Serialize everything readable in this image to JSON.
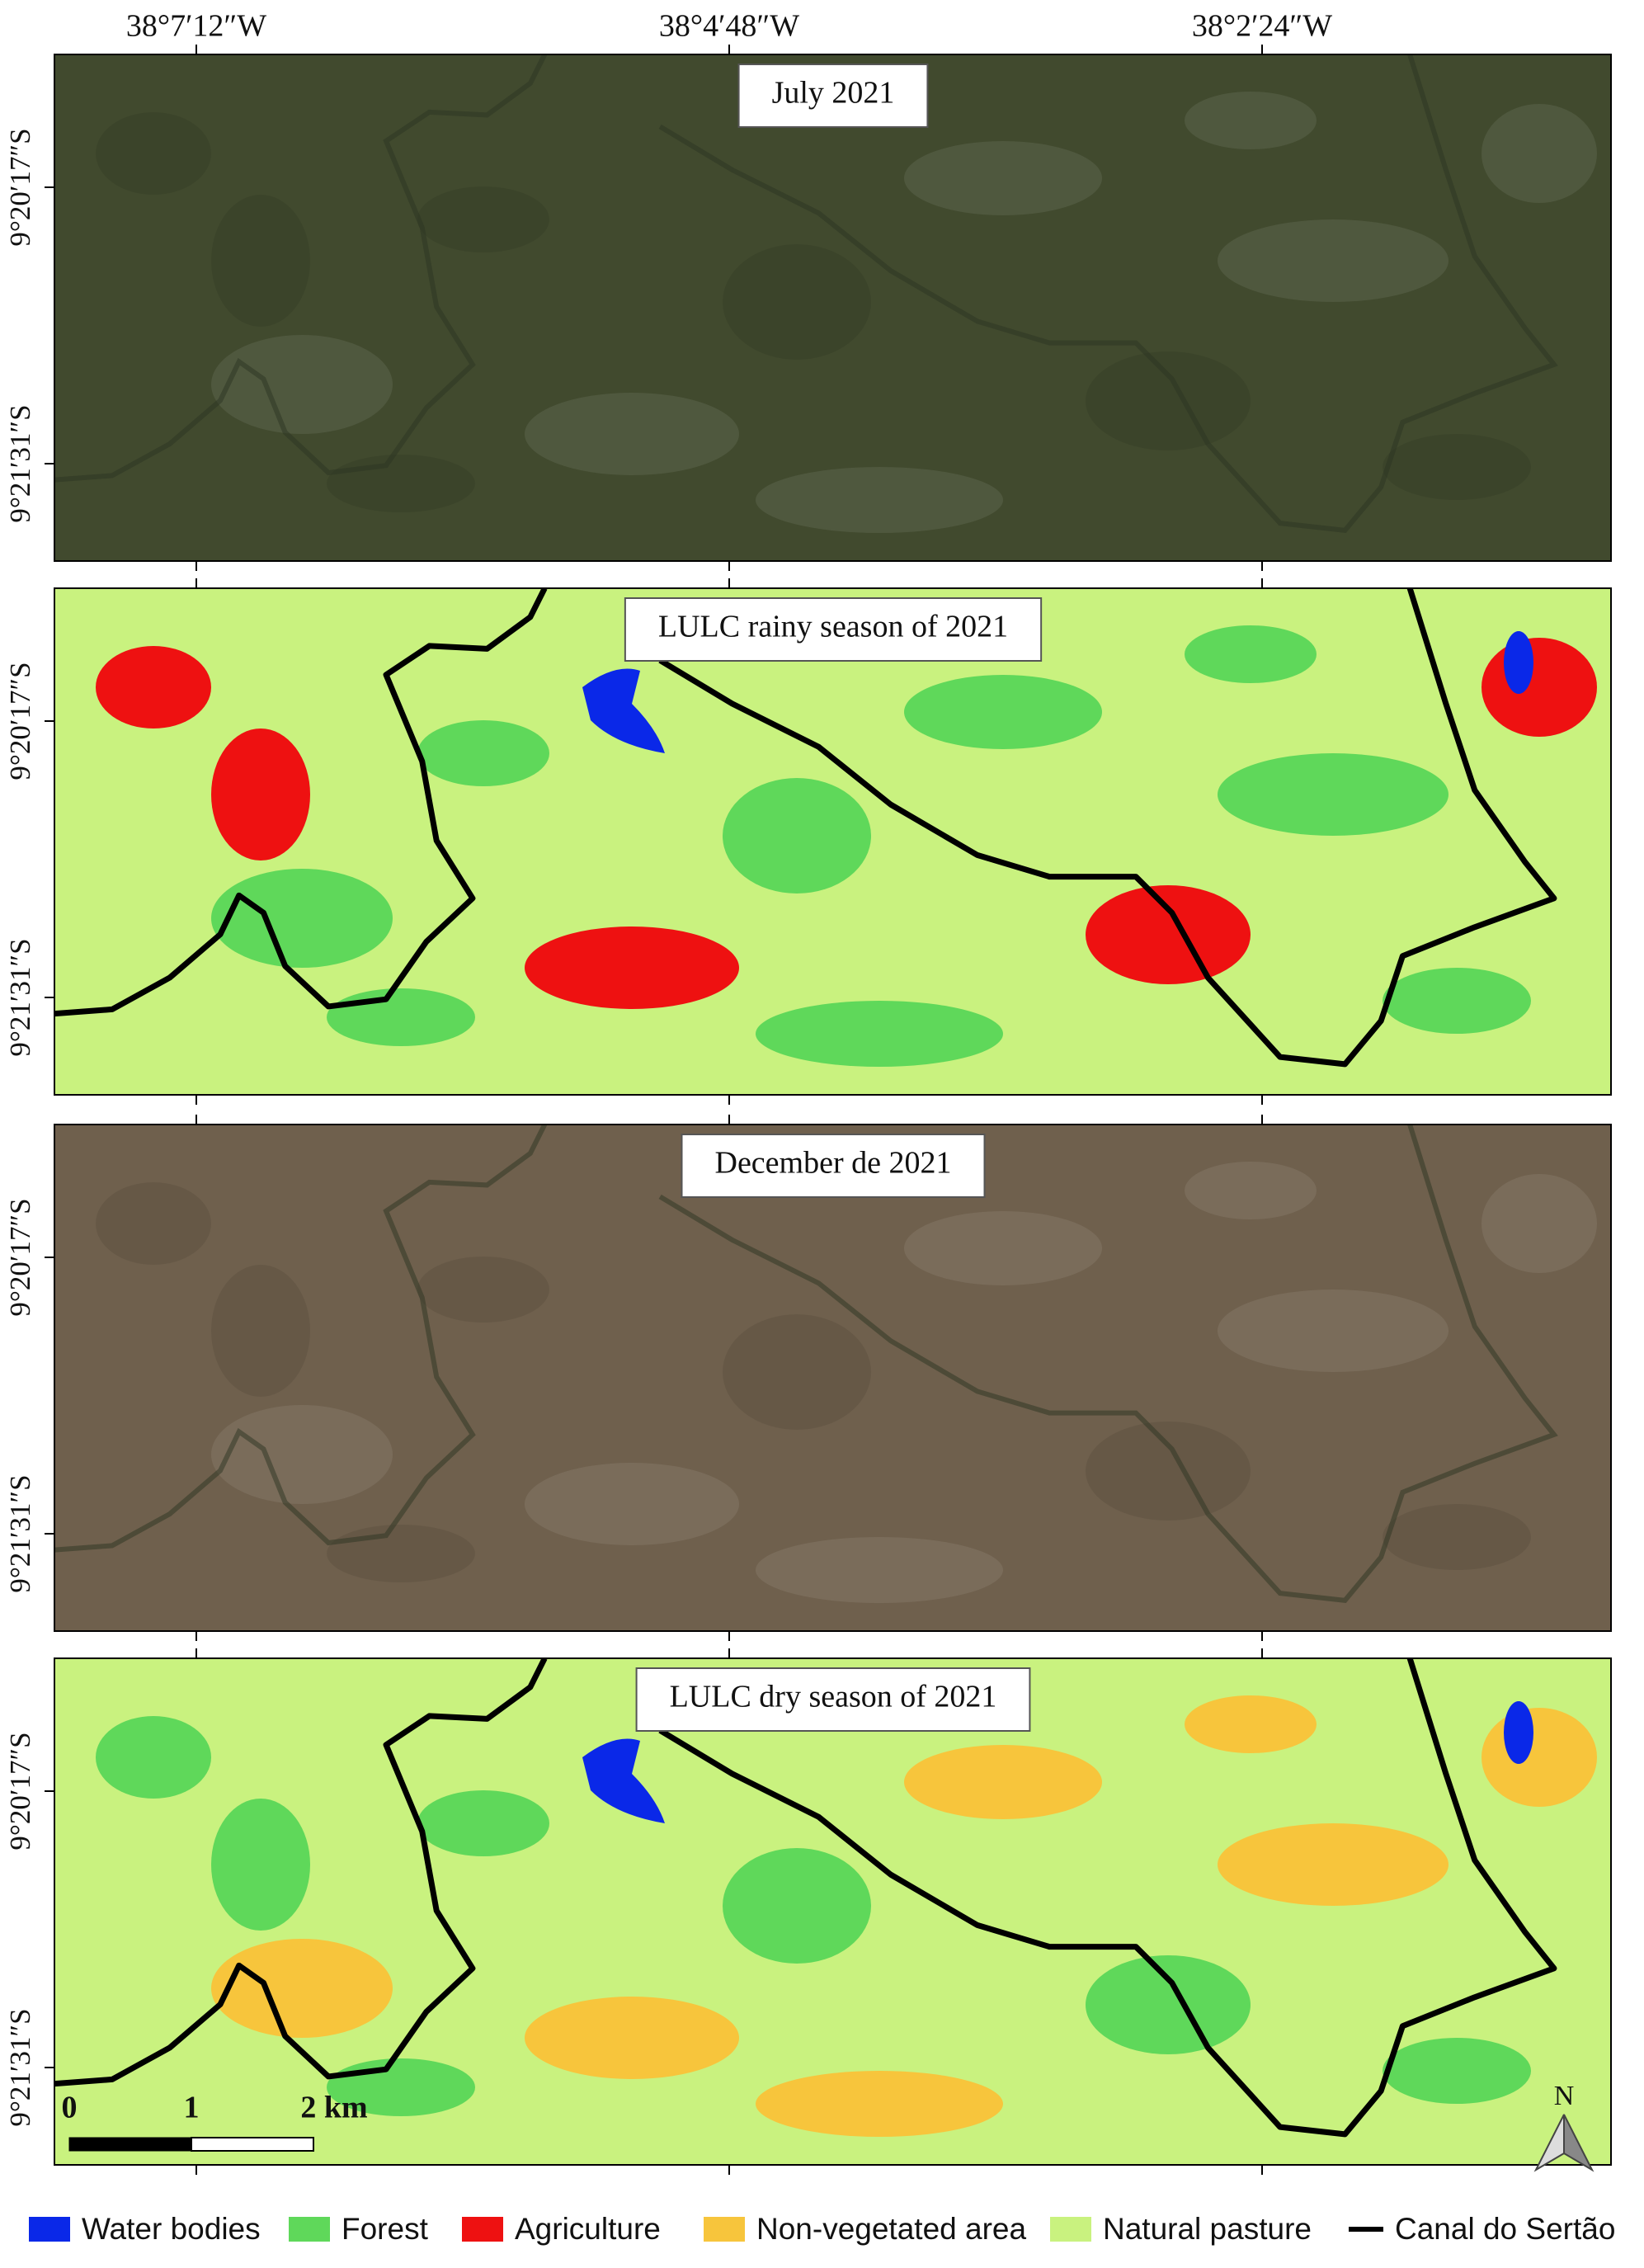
{
  "x_tick_labels": [
    "38°7′12″W",
    "38°4′48″W",
    "38°2′24″W"
  ],
  "y_tick_labels": [
    "9°20′17″S",
    "9°21′31″S"
  ],
  "panels": [
    {
      "title": "July 2021",
      "kind": "image",
      "color": "#414a2e"
    },
    {
      "title": "LULC rainy season of 2021",
      "kind": "lulc",
      "color": "#c9f27f"
    },
    {
      "title": "December de 2021",
      "kind": "image",
      "color": "#6f604d"
    },
    {
      "title": "LULC dry season of 2021",
      "kind": "lulc",
      "color": "#c9f27f"
    }
  ],
  "scale_bar": {
    "labels": [
      "0",
      "1",
      "2 km"
    ]
  },
  "north_arrow": "N",
  "legend": [
    {
      "label": "Water bodies",
      "color": "#0a28e8",
      "kind": "box"
    },
    {
      "label": "Forest",
      "color": "#5fd85a",
      "kind": "box"
    },
    {
      "label": "Agriculture",
      "color": "#ee1111",
      "kind": "box"
    },
    {
      "label": "Non-vegetated area",
      "color": "#f7c53c",
      "kind": "box"
    },
    {
      "label": "Natural pasture",
      "color": "#c9f27f",
      "kind": "box"
    },
    {
      "label": "Canal do Sertão",
      "color": "#000000",
      "kind": "line"
    }
  ]
}
